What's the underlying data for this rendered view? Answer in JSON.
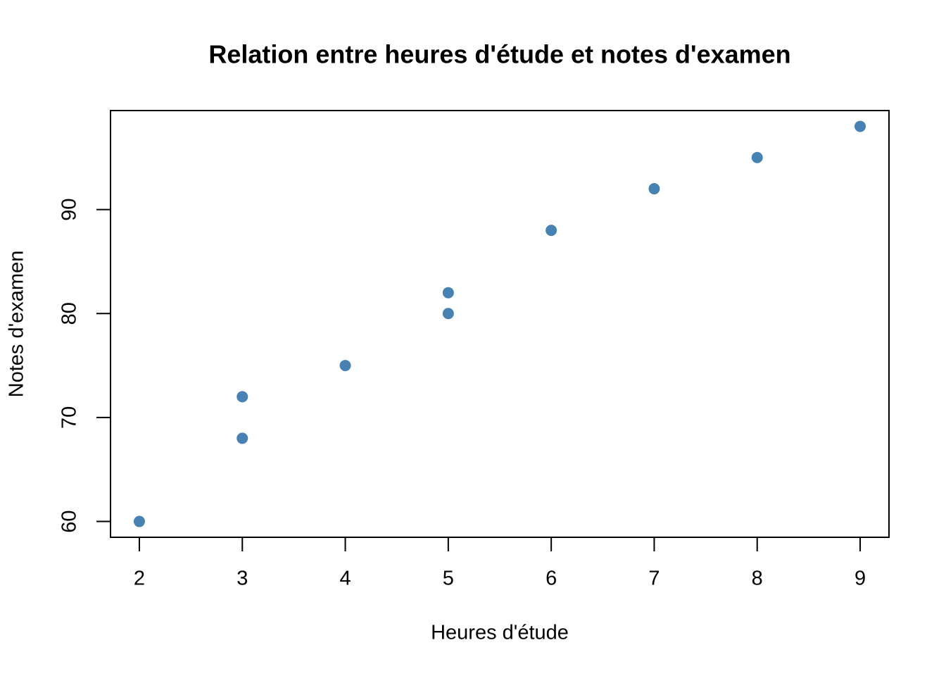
{
  "chart_data": {
    "type": "scatter",
    "title": "Relation entre heures d'étude et notes d'examen",
    "x_label": "Heures d'étude",
    "y_label": "Notes d'examen",
    "x": [
      2,
      3,
      3,
      4,
      5,
      5,
      6,
      7,
      8,
      9
    ],
    "values": [
      60,
      68,
      72,
      75,
      80,
      82,
      88,
      92,
      95,
      98
    ],
    "color": "#4682b4",
    "xlim": [
      1.72,
      9.28
    ],
    "xticks": [
      2,
      3,
      4,
      5,
      6,
      7,
      8,
      9
    ],
    "ylim": [
      58.48,
      99.52
    ],
    "yticks": [
      60,
      70,
      80,
      90
    ],
    "grid": false
  }
}
